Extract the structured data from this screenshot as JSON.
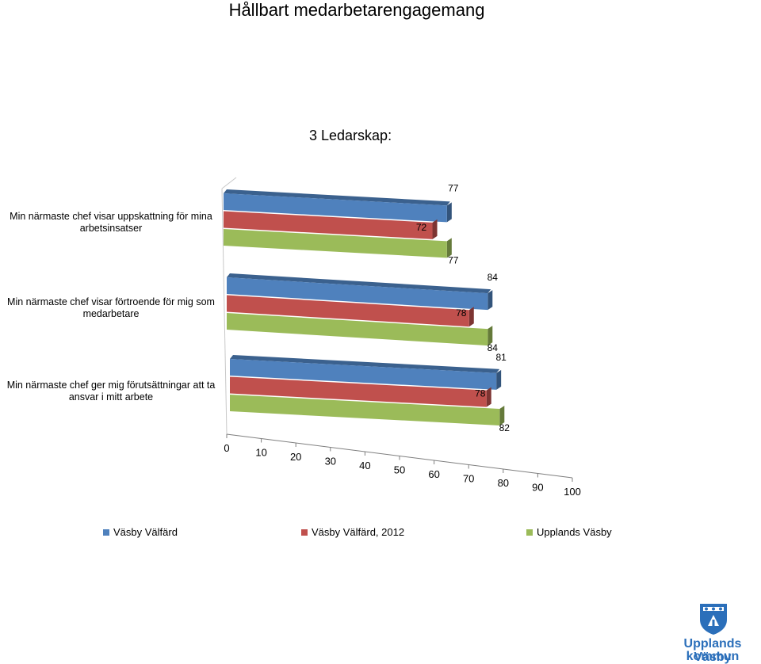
{
  "page": {
    "title": "Hållbart medarbetarengagemang"
  },
  "chart_data": {
    "type": "bar",
    "orientation": "horizontal",
    "style": "3d",
    "title": "3 Ledarskap:",
    "categories": [
      "Min närmaste chef visar uppskattning för mina arbetsinsatser",
      "Min närmaste chef visar förtroende för mig som medarbetare",
      "Min närmaste chef ger mig förutsättningar att ta ansvar i mitt arbete"
    ],
    "series": [
      {
        "name": "Väsby Välfärd",
        "values": [
          77,
          84,
          81
        ],
        "color": "#4f81bd"
      },
      {
        "name": "Väsby Välfärd, 2012",
        "values": [
          72,
          78,
          78
        ],
        "color": "#c0504d"
      },
      {
        "name": "Upplands Väsby",
        "values": [
          77,
          84,
          82
        ],
        "color": "#9bbb59"
      }
    ],
    "xlim": [
      0,
      100
    ],
    "xticks": [
      "0",
      "10",
      "20",
      "30",
      "40",
      "50",
      "60",
      "70",
      "80",
      "90",
      "100"
    ],
    "legend_position": "bottom"
  },
  "logo": {
    "line1": "Upplands Väsby",
    "line2": "kommun"
  }
}
